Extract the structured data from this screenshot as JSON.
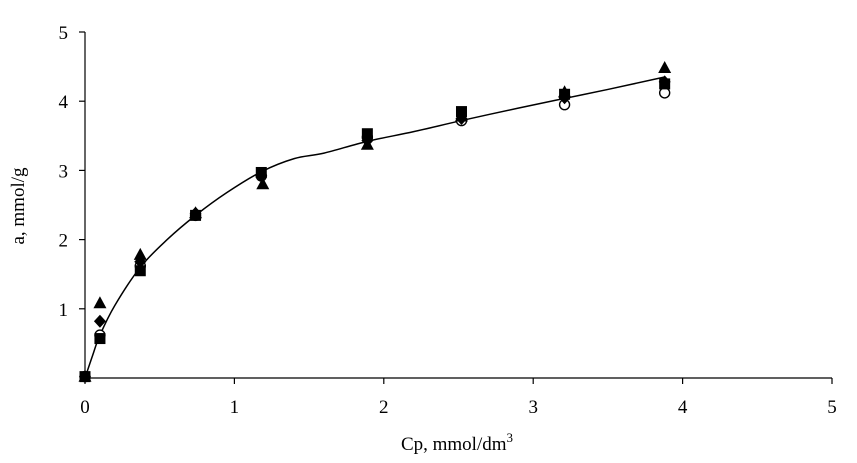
{
  "chart_data": {
    "type": "scatter",
    "title": "",
    "xlabel": "Cp, mmol/dm",
    "xlabel_sup": "3",
    "ylabel": "a, mmol/g",
    "xlim": [
      0,
      5
    ],
    "ylim": [
      0,
      5
    ],
    "x_ticks": [
      "0",
      "1",
      "2",
      "3",
      "4",
      "5"
    ],
    "y_ticks": [
      "1",
      "2",
      "3",
      "4",
      "5"
    ],
    "grid": false,
    "legend": "none",
    "colors": {
      "marker": "#000000",
      "line": "#000000",
      "axis": "#000000"
    },
    "series": [
      {
        "marker": "triangle",
        "points": [
          [
            0,
            0.02
          ],
          [
            0.1,
            1.08
          ],
          [
            0.37,
            1.78
          ],
          [
            0.74,
            2.38
          ],
          [
            1.19,
            2.8
          ],
          [
            1.89,
            3.37
          ],
          [
            2.52,
            3.78
          ],
          [
            3.21,
            4.13
          ],
          [
            3.88,
            4.48
          ]
        ]
      },
      {
        "marker": "diamond",
        "points": [
          [
            0,
            0.02
          ],
          [
            0.1,
            0.82
          ],
          [
            0.37,
            1.68
          ],
          [
            0.74,
            2.38
          ],
          [
            1.18,
            2.92
          ],
          [
            1.89,
            3.43
          ],
          [
            2.52,
            3.75
          ],
          [
            3.21,
            4.05
          ],
          [
            3.88,
            4.28
          ]
        ]
      },
      {
        "marker": "square",
        "points": [
          [
            0,
            0.02
          ],
          [
            0.1,
            0.57
          ],
          [
            0.37,
            1.55
          ],
          [
            0.74,
            2.35
          ],
          [
            1.18,
            2.97
          ],
          [
            1.89,
            3.53
          ],
          [
            2.52,
            3.85
          ],
          [
            3.21,
            4.1
          ],
          [
            3.88,
            4.25
          ]
        ]
      },
      {
        "marker": "open-circle",
        "points": [
          [
            0,
            0.02
          ],
          [
            0.1,
            0.62
          ],
          [
            0.37,
            1.62
          ],
          [
            0.74,
            2.35
          ],
          [
            1.18,
            2.92
          ],
          [
            1.89,
            3.48
          ],
          [
            2.52,
            3.72
          ],
          [
            3.21,
            3.95
          ],
          [
            3.88,
            4.12
          ]
        ]
      }
    ],
    "fit_curve": [
      [
        0,
        0
      ],
      [
        0.05,
        0.32
      ],
      [
        0.1,
        0.62
      ],
      [
        0.2,
        1.05
      ],
      [
        0.37,
        1.6
      ],
      [
        0.55,
        2.0
      ],
      [
        0.74,
        2.35
      ],
      [
        0.95,
        2.68
      ],
      [
        1.18,
        2.98
      ],
      [
        1.4,
        3.17
      ],
      [
        1.6,
        3.25
      ],
      [
        1.89,
        3.42
      ],
      [
        2.2,
        3.56
      ],
      [
        2.52,
        3.72
      ],
      [
        2.9,
        3.9
      ],
      [
        3.21,
        4.04
      ],
      [
        3.5,
        4.17
      ],
      [
        3.88,
        4.35
      ]
    ]
  }
}
